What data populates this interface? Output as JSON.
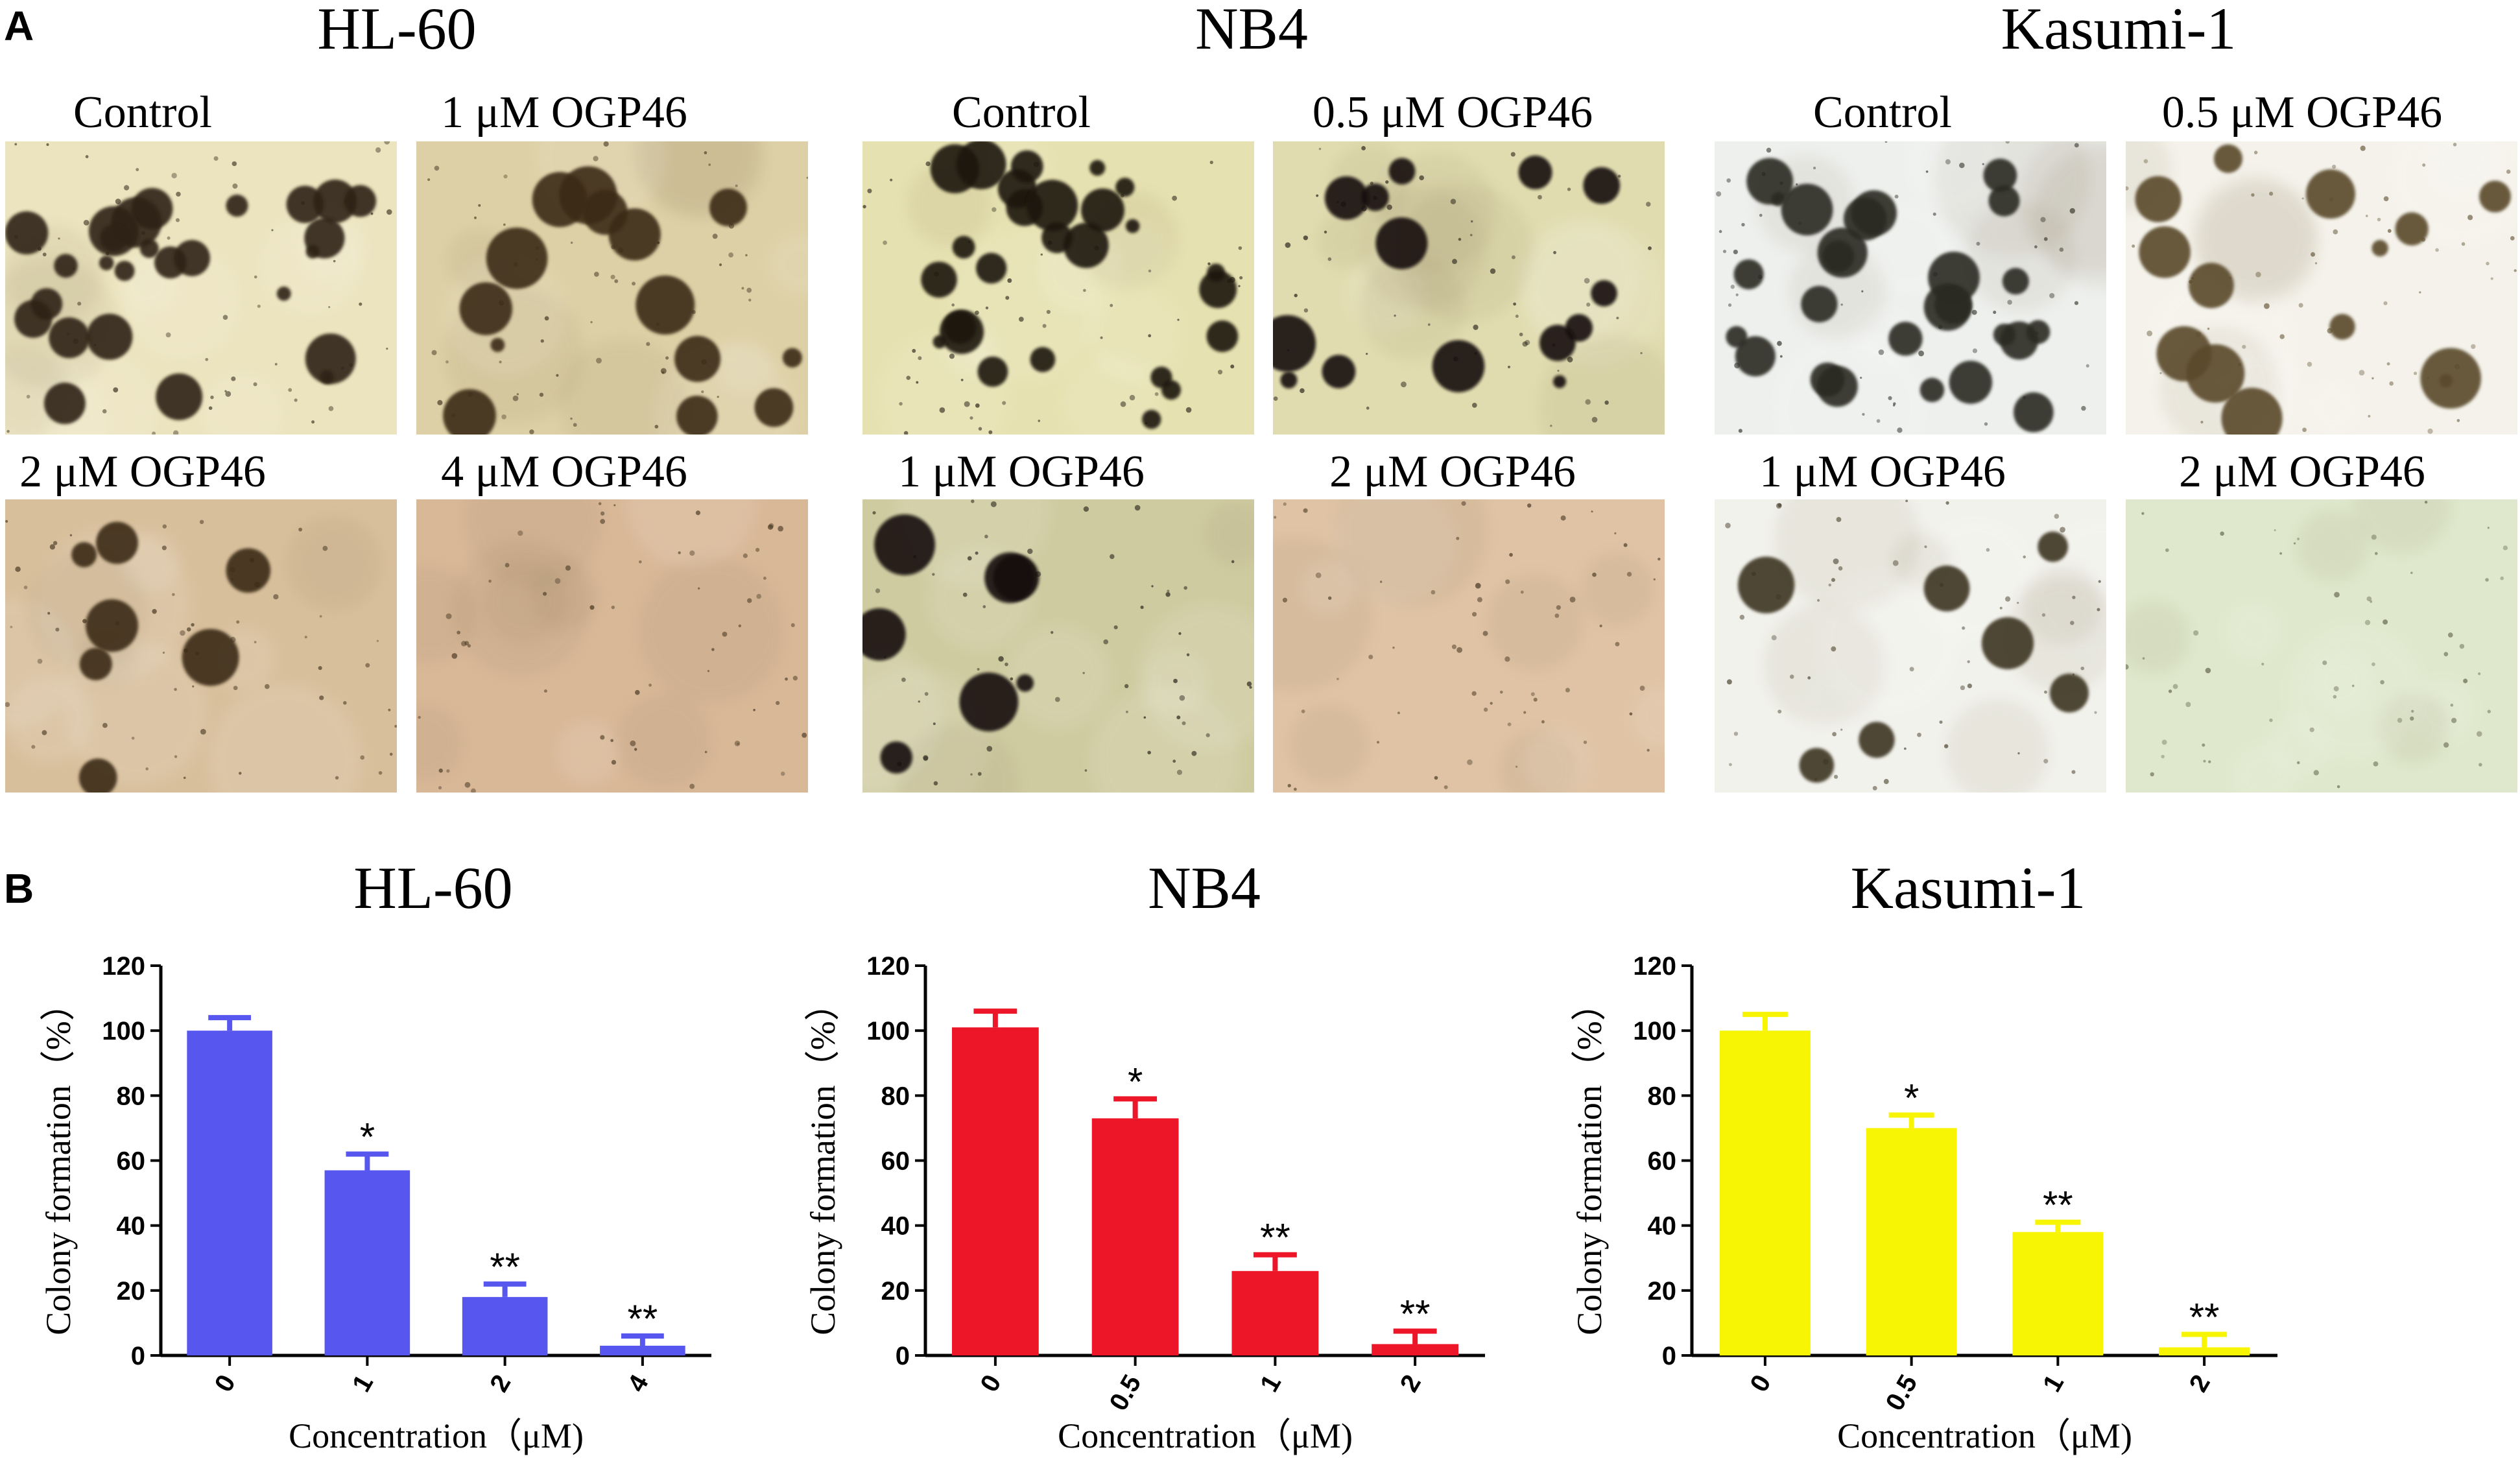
{
  "panels": {
    "A": {
      "label": "A",
      "groups": [
        {
          "title": "HL-60",
          "images": [
            {
              "caption": "Control",
              "tone": "#ece4bf",
              "colony": "#2e2414",
              "density": "high"
            },
            {
              "caption": "1 μM OGP46",
              "tone": "#ddd0a6",
              "colony": "#3a2c18",
              "density": "medium"
            },
            {
              "caption": "2 μM OGP46",
              "tone": "#d8bf9c",
              "colony": "#3a2c18",
              "density": "low"
            },
            {
              "caption": "4 μM OGP46",
              "tone": "#d9b898",
              "colony": "#3a2c18",
              "density": "none"
            }
          ]
        },
        {
          "title": "NB4",
          "images": [
            {
              "caption": "Control",
              "tone": "#e6e1b0",
              "colony": "#1a140c",
              "density": "high"
            },
            {
              "caption": "0.5 μM OGP46",
              "tone": "#e1dcb0",
              "colony": "#120e08",
              "density": "medium"
            },
            {
              "caption": "1 μM OGP46",
              "tone": "#cfcba1",
              "colony": "#120e08",
              "density": "low"
            },
            {
              "caption": "2 μM OGP46",
              "tone": "#dfc3a4",
              "colony": "#3a2c18",
              "density": "none"
            }
          ]
        },
        {
          "title": "Kasumi-1",
          "images": [
            {
              "caption": "Control",
              "tone": "#eef0ee",
              "colony": "#2a2a22",
              "density": "high"
            },
            {
              "caption": "0.5 μM OGP46",
              "tone": "#f4f2ea",
              "colony": "#5a4a2a",
              "density": "medium"
            },
            {
              "caption": "1 μM OGP46",
              "tone": "#f2f2ec",
              "colony": "#3e3420",
              "density": "low"
            },
            {
              "caption": "2 μM OGP46",
              "tone": "#dfe8cc",
              "colony": "#5a5a40",
              "density": "none"
            }
          ]
        }
      ]
    },
    "B": {
      "label": "B"
    }
  },
  "chart_data": [
    {
      "type": "bar",
      "title": "HL-60",
      "categories": [
        "0",
        "1",
        "2",
        "4"
      ],
      "values": [
        100,
        57,
        18,
        3
      ],
      "errors": [
        4,
        5,
        4,
        3
      ],
      "significance": [
        "",
        "*",
        "**",
        "**"
      ],
      "xlabel": "Concentration（μM)",
      "ylabel": "Colony formation（%）",
      "ylim": [
        0,
        120
      ],
      "yticks": [
        0,
        20,
        40,
        60,
        80,
        100,
        120
      ],
      "color": "#5757ef",
      "grid": false
    },
    {
      "type": "bar",
      "title": "NB4",
      "categories": [
        "0",
        "0.5",
        "1",
        "2"
      ],
      "values": [
        101,
        73,
        26,
        3.5
      ],
      "errors": [
        5,
        6,
        5,
        4
      ],
      "significance": [
        "",
        "*",
        "**",
        "**"
      ],
      "xlabel": "Concentration（μM)",
      "ylabel": "Colony formation（%）",
      "ylim": [
        0,
        120
      ],
      "yticks": [
        0,
        20,
        40,
        60,
        80,
        100,
        120
      ],
      "color": "#ec1628",
      "grid": false
    },
    {
      "type": "bar",
      "title": "Kasumi-1",
      "categories": [
        "0",
        "0.5",
        "1",
        "2"
      ],
      "values": [
        100,
        70,
        38,
        2.5
      ],
      "errors": [
        5,
        4,
        3,
        4
      ],
      "significance": [
        "",
        "*",
        "**",
        "**"
      ],
      "xlabel": "Concentration（μM)",
      "ylabel": "Colony formation（%）",
      "ylim": [
        0,
        120
      ],
      "yticks": [
        0,
        20,
        40,
        60,
        80,
        100,
        120
      ],
      "color": "#f7f503",
      "grid": false
    }
  ]
}
